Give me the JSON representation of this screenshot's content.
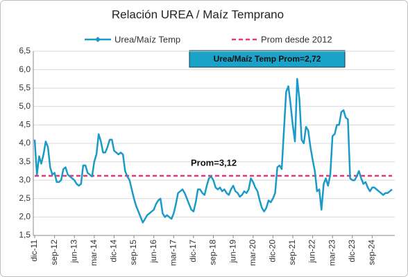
{
  "chart_data": {
    "type": "line",
    "title": "Relación UREA / Maíz Temprano",
    "categories": [
      "dic-11",
      null,
      null,
      null,
      null,
      null,
      null,
      null,
      null,
      "sep-12",
      null,
      null,
      null,
      null,
      null,
      null,
      null,
      null,
      "jun-13",
      null,
      null,
      null,
      null,
      null,
      null,
      null,
      null,
      "mar-14",
      null,
      null,
      null,
      null,
      null,
      null,
      null,
      null,
      "dic-14",
      null,
      null,
      null,
      null,
      null,
      null,
      null,
      null,
      "sep-15",
      null,
      null,
      null,
      null,
      null,
      null,
      null,
      null,
      "jun-16",
      null,
      null,
      null,
      null,
      null,
      null,
      null,
      null,
      "mar-17",
      null,
      null,
      null,
      null,
      null,
      null,
      null,
      null,
      "dic-17",
      null,
      null,
      null,
      null,
      null,
      null,
      null,
      null,
      "sep-18",
      null,
      null,
      null,
      null,
      null,
      null,
      null,
      null,
      "jun-19",
      null,
      null,
      null,
      null,
      null,
      null,
      null,
      null,
      "mar-20",
      null,
      null,
      null,
      null,
      null,
      null,
      null,
      null,
      "dic-20",
      null,
      null,
      null,
      null,
      null,
      null,
      null,
      null,
      "sep-21",
      null,
      null,
      null,
      null,
      null,
      null,
      null,
      null,
      "jun-22",
      null,
      null,
      null,
      null,
      null,
      null,
      null,
      null,
      "mar-23",
      null,
      null,
      null,
      null,
      null,
      null,
      null,
      null,
      "dic-23",
      null,
      null,
      null,
      null,
      null,
      null,
      null,
      null,
      "sep-24",
      null,
      null,
      null,
      null,
      null,
      null,
      null,
      null,
      null
    ],
    "series": [
      {
        "name": "Urea/Maíz Temp",
        "color": "#1a9bc7",
        "values": [
          4.1,
          3.15,
          3.65,
          3.45,
          3.7,
          4.05,
          3.9,
          3.35,
          3.15,
          3.2,
          2.95,
          2.95,
          3.0,
          3.3,
          3.35,
          3.15,
          3.1,
          3.05,
          3.0,
          2.9,
          2.85,
          2.9,
          3.4,
          3.4,
          3.2,
          3.15,
          3.1,
          3.5,
          3.7,
          4.25,
          4.05,
          3.75,
          3.75,
          3.9,
          4.1,
          4.1,
          3.8,
          3.75,
          3.7,
          3.75,
          3.7,
          3.25,
          3.1,
          3.0,
          2.75,
          2.5,
          2.3,
          2.15,
          2.0,
          1.85,
          1.95,
          2.05,
          2.1,
          2.15,
          2.2,
          2.35,
          2.45,
          2.5,
          2.1,
          2.0,
          2.05,
          2.0,
          1.95,
          2.1,
          2.35,
          2.65,
          2.7,
          2.75,
          2.65,
          2.5,
          2.35,
          2.2,
          2.15,
          2.4,
          2.75,
          2.75,
          2.65,
          2.6,
          2.85,
          3.05,
          3.1,
          3.0,
          2.8,
          2.75,
          2.8,
          2.7,
          2.75,
          2.65,
          2.6,
          2.75,
          2.85,
          2.7,
          2.65,
          2.55,
          2.6,
          2.7,
          2.65,
          2.75,
          3.05,
          2.95,
          2.8,
          2.7,
          2.45,
          2.25,
          2.15,
          2.25,
          2.45,
          2.4,
          2.5,
          2.65,
          3.35,
          3.4,
          3.3,
          4.35,
          5.4,
          5.55,
          5.05,
          4.5,
          4.05,
          5.75,
          5.2,
          4.1,
          4.0,
          4.45,
          4.35,
          3.9,
          3.55,
          3.25,
          2.7,
          2.75,
          2.2,
          2.9,
          3.05,
          2.85,
          3.15,
          4.2,
          4.25,
          4.5,
          4.5,
          4.85,
          4.9,
          4.7,
          4.65,
          3.05,
          3.0,
          3.0,
          3.1,
          3.25,
          3.05,
          2.9,
          2.95,
          2.8,
          2.7,
          2.8,
          2.8,
          2.75,
          2.7,
          2.65,
          2.6,
          2.65,
          2.65,
          2.7,
          2.75
        ]
      }
    ],
    "average": {
      "name": "Prom desde 2012",
      "value": 3.12,
      "label": "Prom=3,12",
      "color": "#e8337d"
    },
    "annotation": "Urea/Maíz Temp Prom=2,72",
    "ylim": [
      1.5,
      6.5
    ],
    "yticks": [
      {
        "value": 1.5,
        "label": "1,5"
      },
      {
        "value": 2,
        "label": "2,0"
      },
      {
        "value": 2.5,
        "label": "2,5"
      },
      {
        "value": 3,
        "label": "3,0"
      },
      {
        "value": 3.5,
        "label": "3,5"
      },
      {
        "value": 4,
        "label": "4,0"
      },
      {
        "value": 4.5,
        "label": "4,5"
      },
      {
        "value": 5,
        "label": "5,0"
      },
      {
        "value": 5.5,
        "label": "5,5"
      },
      {
        "value": 6,
        "label": "6,0"
      },
      {
        "value": 6.5,
        "label": "6,5"
      }
    ],
    "grid": true
  }
}
